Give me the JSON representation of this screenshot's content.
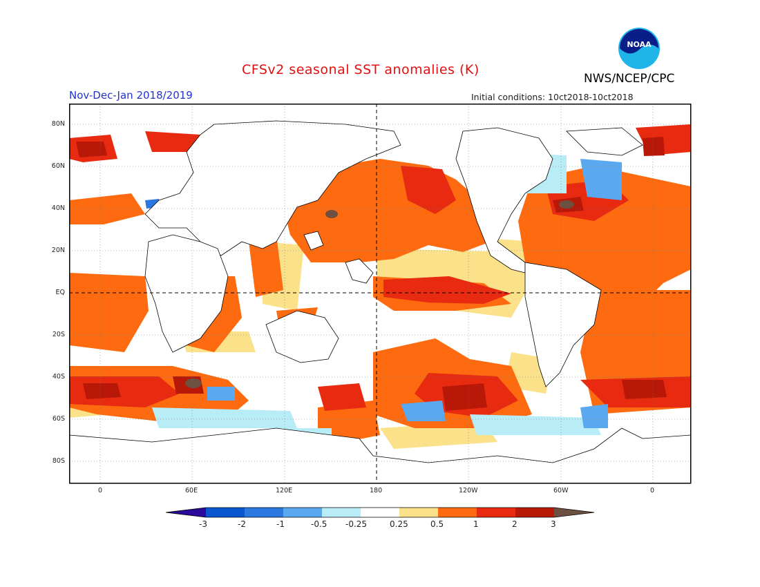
{
  "header": {
    "title": "CFSv2 seasonal SST anomalies (K)",
    "period": "Nov-Dec-Jan 2018/2019",
    "initial_conditions": "Initial conditions: 10ct2018-10ct2018",
    "agency": "NWS/NCEP/CPC",
    "logo_text": "NOAA"
  },
  "map": {
    "projection": "equirectangular",
    "lat_ticks": [
      "80N",
      "60N",
      "40N",
      "20N",
      "EQ",
      "20S",
      "40S",
      "60S",
      "80S"
    ],
    "lon_ticks": [
      "0",
      "60E",
      "120E",
      "180",
      "120W",
      "60W",
      "0"
    ],
    "reference_lines": [
      "equator",
      "180 meridian"
    ],
    "grid": "dotted"
  },
  "colorbar": {
    "labels": [
      "-3",
      "-2",
      "-1",
      "-0.5",
      "-0.25",
      "0.25",
      "0.5",
      "1",
      "2",
      "3"
    ],
    "colors": {
      "below_-3": "#2a0a9a",
      "-3_to_-2": "#0a55d0",
      "-2_to_-1": "#2a78e0",
      "-1_to_-0.5": "#5aa8f0",
      "-0.5_to_-0.25": "#b8ecf6",
      "neutral": "#ffffff",
      "0.25_to_0.5": "#fbe189",
      "0.5_to_1": "#fd6a10",
      "1_to_2": "#e82a10",
      "2_to_3": "#b81808",
      "above_3": "#6e5040"
    }
  }
}
